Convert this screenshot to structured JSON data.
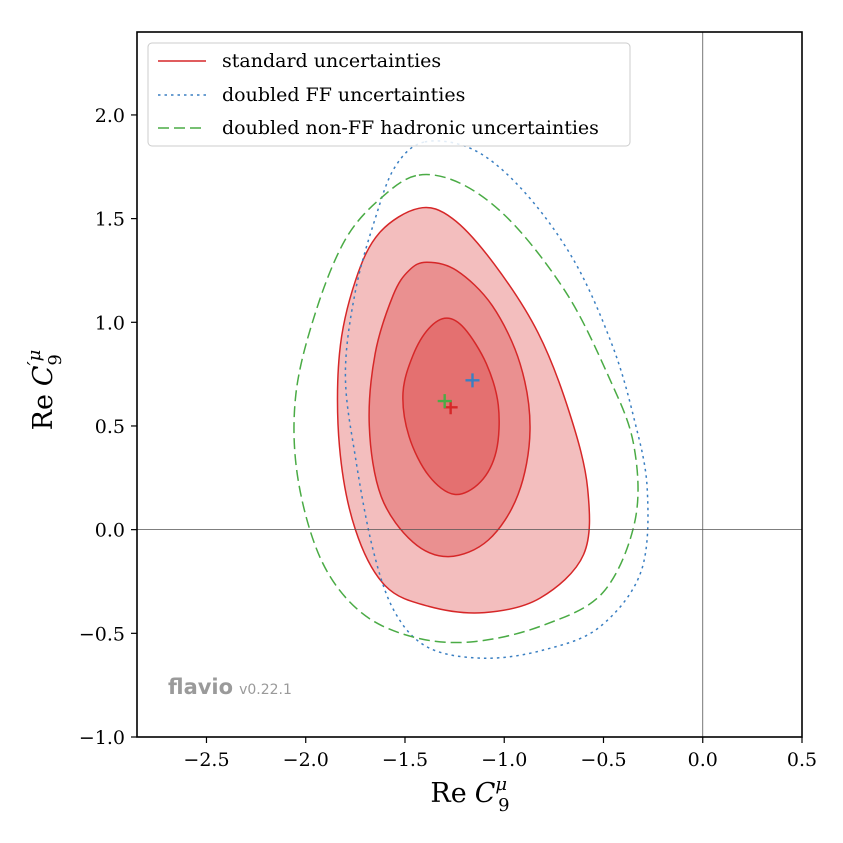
{
  "chart_data": {
    "type": "contour",
    "xlabel_main": "Re",
    "xlabel_symbol": "C",
    "xlabel_sub": "9",
    "xlabel_sup": "μ",
    "ylabel_main": "Re",
    "ylabel_symbol": "C",
    "ylabel_sub": "9",
    "ylabel_sup": "′μ",
    "xlim": [
      -2.85,
      0.5
    ],
    "ylim": [
      -1.0,
      2.4
    ],
    "xticks": [
      -2.5,
      -2.0,
      -1.5,
      -1.0,
      -0.5,
      0.0,
      0.5
    ],
    "yticks": [
      -1.0,
      -0.5,
      0.0,
      0.5,
      1.0,
      1.5,
      2.0
    ],
    "xtick_labels": [
      "−2.5",
      "−2.0",
      "−1.5",
      "−1.0",
      "−0.5",
      "0.0",
      "0.5"
    ],
    "ytick_labels": [
      "−1.0",
      "−0.5",
      "0.0",
      "0.5",
      "1.0",
      "1.5",
      "2.0"
    ],
    "reference_lines": {
      "x": 0.0,
      "y": 0.0
    },
    "legend_location": "upper-left",
    "series": [
      {
        "name": "standard uncertainties",
        "color": "#d62728",
        "style": "solid",
        "best_fit": [
          -1.27,
          0.59
        ],
        "contours": [
          {
            "level": "1σ",
            "fill_opacity": 0.3,
            "points": [
              [
                -1.29,
                1.02
              ],
              [
                -1.2,
                0.97
              ],
              [
                -1.09,
                0.8
              ],
              [
                -1.03,
                0.6
              ],
              [
                -1.04,
                0.38
              ],
              [
                -1.12,
                0.23
              ],
              [
                -1.25,
                0.17
              ],
              [
                -1.38,
                0.26
              ],
              [
                -1.48,
                0.45
              ],
              [
                -1.51,
                0.66
              ],
              [
                -1.46,
                0.84
              ],
              [
                -1.38,
                0.97
              ]
            ]
          },
          {
            "level": "2σ",
            "fill_opacity": 0.3,
            "points": [
              [
                -1.39,
                1.29
              ],
              [
                -1.24,
                1.25
              ],
              [
                -1.06,
                1.08
              ],
              [
                -0.92,
                0.8
              ],
              [
                -0.87,
                0.48
              ],
              [
                -0.93,
                0.17
              ],
              [
                -1.08,
                -0.05
              ],
              [
                -1.28,
                -0.13
              ],
              [
                -1.46,
                -0.06
              ],
              [
                -1.62,
                0.16
              ],
              [
                -1.68,
                0.5
              ],
              [
                -1.65,
                0.85
              ],
              [
                -1.56,
                1.13
              ],
              [
                -1.48,
                1.25
              ]
            ]
          },
          {
            "level": "3σ",
            "fill_opacity": 0.3,
            "points": [
              [
                -1.43,
                1.55
              ],
              [
                -1.26,
                1.5
              ],
              [
                -1.05,
                1.28
              ],
              [
                -0.83,
                0.95
              ],
              [
                -0.67,
                0.56
              ],
              [
                -0.58,
                0.2
              ],
              [
                -0.6,
                -0.12
              ],
              [
                -0.82,
                -0.33
              ],
              [
                -1.1,
                -0.4
              ],
              [
                -1.38,
                -0.37
              ],
              [
                -1.6,
                -0.27
              ],
              [
                -1.75,
                0.0
              ],
              [
                -1.83,
                0.4
              ],
              [
                -1.83,
                0.85
              ],
              [
                -1.75,
                1.2
              ],
              [
                -1.63,
                1.43
              ]
            ]
          }
        ]
      },
      {
        "name": "doubled FF uncertainties",
        "color": "#3a7fc2",
        "style": "dotted",
        "best_fit": [
          -1.16,
          0.72
        ],
        "contours": [
          {
            "level": "3σ",
            "fill_opacity": 0,
            "points": [
              [
                -1.4,
                1.87
              ],
              [
                -1.15,
                1.83
              ],
              [
                -0.9,
                1.63
              ],
              [
                -0.65,
                1.3
              ],
              [
                -0.46,
                0.9
              ],
              [
                -0.35,
                0.55
              ],
              [
                -0.28,
                0.2
              ],
              [
                -0.31,
                -0.2
              ],
              [
                -0.52,
                -0.47
              ],
              [
                -0.8,
                -0.58
              ],
              [
                -1.1,
                -0.62
              ],
              [
                -1.38,
                -0.57
              ],
              [
                -1.55,
                -0.4
              ],
              [
                -1.66,
                -0.1
              ],
              [
                -1.75,
                0.35
              ],
              [
                -1.8,
                0.75
              ],
              [
                -1.75,
                1.15
              ],
              [
                -1.65,
                1.5
              ],
              [
                -1.55,
                1.75
              ]
            ]
          }
        ]
      },
      {
        "name": "doubled non-FF hadronic uncertainties",
        "color": "#4aab45",
        "style": "dashed",
        "best_fit": [
          -1.3,
          0.62
        ],
        "contours": [
          {
            "level": "3σ",
            "fill_opacity": 0,
            "points": [
              [
                -1.43,
                1.71
              ],
              [
                -1.2,
                1.66
              ],
              [
                -0.95,
                1.47
              ],
              [
                -0.68,
                1.13
              ],
              [
                -0.48,
                0.75
              ],
              [
                -0.35,
                0.42
              ],
              [
                -0.34,
                0.05
              ],
              [
                -0.5,
                -0.3
              ],
              [
                -0.8,
                -0.46
              ],
              [
                -1.15,
                -0.54
              ],
              [
                -1.45,
                -0.52
              ],
              [
                -1.72,
                -0.4
              ],
              [
                -1.92,
                -0.15
              ],
              [
                -2.04,
                0.25
              ],
              [
                -2.05,
                0.65
              ],
              [
                -1.95,
                1.05
              ],
              [
                -1.8,
                1.4
              ],
              [
                -1.62,
                1.6
              ]
            ]
          }
        ]
      }
    ]
  },
  "watermark": {
    "name": "flavio",
    "version": "v0.22.1"
  }
}
